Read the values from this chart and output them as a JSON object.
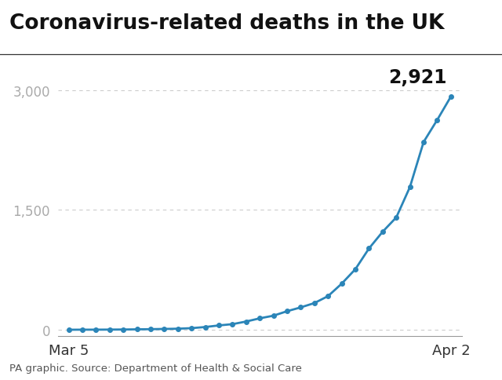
{
  "title": "Coronavirus-related deaths in the UK",
  "source": "PA graphic. Source: Department of Health & Social Care",
  "line_color": "#2b85b8",
  "background_color": "#ffffff",
  "x_labels": [
    "Mar 5",
    "Apr 2"
  ],
  "y_ticks": [
    0,
    1500,
    3000
  ],
  "y_tick_labels": [
    "0",
    "1,500",
    "3,000"
  ],
  "ylim": [
    -80,
    3400
  ],
  "final_label": "2,921",
  "deaths": [
    1,
    2,
    2,
    3,
    4,
    6,
    8,
    11,
    14,
    21,
    35,
    55,
    71,
    104,
    144,
    177,
    233,
    281,
    335,
    422,
    578,
    759,
    1019,
    1228,
    1408,
    1789,
    2352,
    2629,
    2921
  ],
  "title_fontsize": 19,
  "tick_fontsize": 12,
  "source_fontsize": 9.5,
  "annotation_fontsize": 17,
  "grid_color": "#cccccc",
  "tick_color": "#aaaaaa",
  "title_line_color": "#555555"
}
